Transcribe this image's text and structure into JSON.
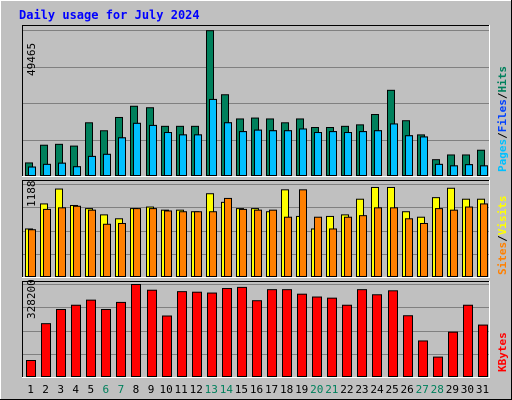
{
  "title": "Daily usage for July 2024",
  "colors": {
    "background": "#c0c0c0",
    "title": "#0000ff",
    "hits": "#00805c",
    "files": "#0040ff",
    "pages": "#00c0ff",
    "visits": "#ffff00",
    "sites": "#ff8000",
    "kbytes": "#ff0000",
    "weekday": "#000000",
    "weekend": "#00805c",
    "grid": "#808080"
  },
  "legend": {
    "top": {
      "pages": "Pages",
      "files": "Files",
      "hits": "Hits",
      "sep": "/"
    },
    "middle": {
      "sites": "Sites",
      "visits": "Visits",
      "sep": "/"
    },
    "bottom": {
      "kbytes": "KBytes"
    }
  },
  "chart_data": [
    {
      "type": "bar",
      "panel": "hits-files-pages",
      "max_label": "49465",
      "ylim": [
        0,
        49465
      ],
      "categories": [
        "1",
        "2",
        "3",
        "4",
        "5",
        "6",
        "7",
        "8",
        "9",
        "10",
        "11",
        "12",
        "13",
        "14",
        "15",
        "16",
        "17",
        "18",
        "19",
        "20",
        "21",
        "22",
        "23",
        "24",
        "25",
        "26",
        "27",
        "28",
        "29",
        "30",
        "31"
      ],
      "weekend": [
        "6",
        "7",
        "13",
        "14",
        "20",
        "21",
        "27",
        "28"
      ],
      "series": [
        {
          "name": "Hits",
          "values": [
            4600,
            10600,
            10900,
            10300,
            18200,
            15500,
            20000,
            23800,
            23300,
            17000,
            17000,
            17000,
            49400,
            27700,
            19500,
            19800,
            19500,
            18200,
            19500,
            16600,
            16600,
            17000,
            17500,
            21000,
            29200,
            18900,
            14100,
            5700,
            7300,
            7300,
            8900
          ]
        },
        {
          "name": "Files",
          "values": [
            3200,
            4100,
            4500,
            3300,
            6800,
            7500,
            13100,
            18000,
            17300,
            14900,
            14100,
            14100,
            26100,
            18200,
            15200,
            15700,
            15500,
            15500,
            16100,
            14900,
            15200,
            14900,
            15200,
            15500,
            17800,
            13800,
            13400,
            4100,
            3600,
            4000,
            3600
          ]
        },
        {
          "name": "Pages",
          "values": [
            3200,
            4100,
            4500,
            3300,
            6800,
            7500,
            13100,
            18000,
            17300,
            14900,
            14100,
            14100,
            26100,
            18200,
            15200,
            15700,
            15500,
            15500,
            16100,
            14900,
            15200,
            14900,
            15200,
            15500,
            17800,
            13800,
            13400,
            4100,
            3600,
            4000,
            3600
          ]
        }
      ]
    },
    {
      "type": "bar",
      "panel": "sites-visits",
      "max_label": "1188",
      "ylim": [
        0,
        1188
      ],
      "categories": [
        "1",
        "2",
        "3",
        "4",
        "5",
        "6",
        "7",
        "8",
        "9",
        "10",
        "11",
        "12",
        "13",
        "14",
        "15",
        "16",
        "17",
        "18",
        "19",
        "20",
        "21",
        "22",
        "23",
        "24",
        "25",
        "26",
        "27",
        "28",
        "29",
        "30",
        "31"
      ],
      "series": [
        {
          "name": "Visits",
          "values": [
            620,
            940,
            1130,
            920,
            880,
            800,
            750,
            880,
            900,
            860,
            860,
            840,
            1070,
            960,
            880,
            880,
            840,
            1120,
            780,
            620,
            780,
            800,
            1000,
            1150,
            1150,
            840,
            770,
            1020,
            1140,
            1000,
            1000
          ]
        },
        {
          "name": "Sites",
          "values": [
            610,
            870,
            890,
            910,
            860,
            680,
            690,
            880,
            880,
            850,
            840,
            840,
            840,
            1010,
            870,
            860,
            860,
            770,
            1120,
            770,
            620,
            770,
            790,
            890,
            890,
            750,
            690,
            880,
            860,
            900,
            940
          ]
        }
      ]
    },
    {
      "type": "bar",
      "panel": "kbytes",
      "max_label": "328200",
      "ylim": [
        0,
        328200
      ],
      "categories": [
        "1",
        "2",
        "3",
        "4",
        "5",
        "6",
        "7",
        "8",
        "9",
        "10",
        "11",
        "12",
        "13",
        "14",
        "15",
        "16",
        "17",
        "18",
        "19",
        "20",
        "21",
        "22",
        "23",
        "24",
        "25",
        "26",
        "27",
        "28",
        "29",
        "30",
        "31"
      ],
      "series": [
        {
          "name": "KBytes",
          "values": [
            60000,
            190000,
            240000,
            255000,
            273000,
            240000,
            265000,
            328200,
            308000,
            217000,
            303000,
            301000,
            298000,
            314000,
            318000,
            271000,
            310000,
            310000,
            294000,
            284000,
            280000,
            255000,
            310000,
            292000,
            306000,
            218000,
            129000,
            72000,
            160000,
            255000,
            185000
          ]
        }
      ]
    }
  ]
}
